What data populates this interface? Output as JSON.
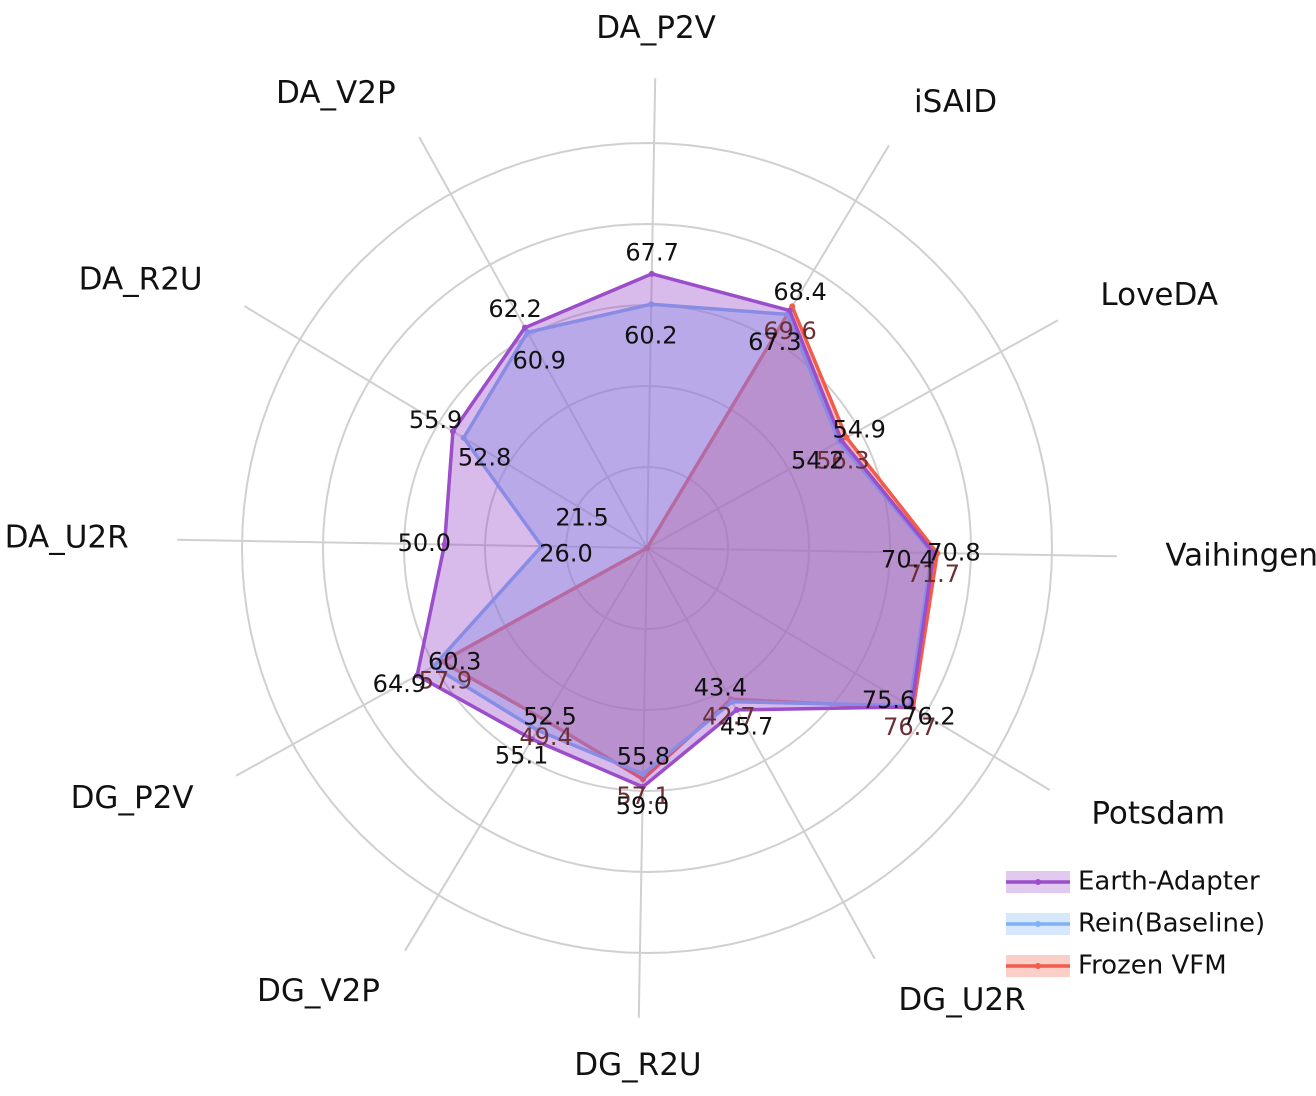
{
  "chart_data": {
    "type": "radar",
    "axes": [
      "DA_P2V",
      "iSAID",
      "LoveDA",
      "Vaihingen",
      "Potsdam",
      "DG_U2R",
      "DG_R2U",
      "DG_V2P",
      "DG_P2V",
      "DA_U2R",
      "DA_R2U",
      "DA_V2P"
    ],
    "series": [
      {
        "name": "Frozen VFM",
        "color": "#f25c4a",
        "values": [
          0,
          69.6,
          56.3,
          71.7,
          76.7,
          42.7,
          57.1,
          49.4,
          57.9,
          0,
          0,
          0
        ],
        "labels": [
          "",
          "69.6",
          "56.3",
          "71.7",
          "76.7",
          "42.7",
          "57.1",
          "49.4",
          "57.9",
          "",
          "",
          ""
        ]
      },
      {
        "name": "Rein(Baseline)",
        "color": "#7fb3f5",
        "values": [
          60.2,
          67.3,
          54.2,
          70.4,
          75.6,
          43.4,
          55.8,
          52.5,
          60.3,
          26.0,
          52.8,
          60.9
        ],
        "labels": [
          "60.2",
          "67.3",
          "54.2",
          "70.4",
          "75.6",
          "43.4",
          "55.8",
          "52.5",
          "60.3",
          "26.0",
          "52.8",
          "60.9"
        ]
      },
      {
        "name": "Earth-Adapter",
        "color": "#9b4dca",
        "values": [
          67.7,
          68.4,
          54.9,
          70.8,
          76.2,
          45.7,
          59.0,
          55.1,
          64.9,
          50.0,
          55.9,
          62.2
        ],
        "labels": [
          "67.7",
          "68.4",
          "54.9",
          "70.8",
          "76.2",
          "45.7",
          "59.0",
          "55.1",
          "64.9",
          "50.0",
          "55.9",
          "62.2"
        ]
      }
    ],
    "extra_labels": [
      {
        "axis": "DA_U2R",
        "text": "21.5"
      }
    ],
    "legend": {
      "position": "bottom-right",
      "items": [
        "Earth-Adapter",
        "Rein(Baseline)",
        "Frozen VFM"
      ]
    },
    "grid": true
  }
}
